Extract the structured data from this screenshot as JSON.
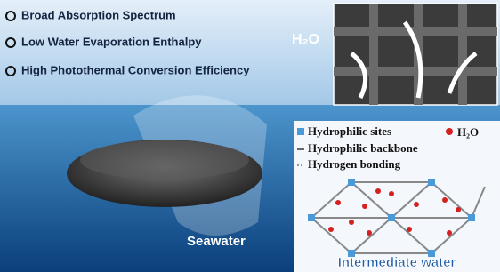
{
  "features": [
    "Broad Absorption Spectrum",
    "Low Water Evaporation Enthalpy",
    "High Photothermal Conversion Efficiency"
  ],
  "inset_label": "H₂O",
  "legend": {
    "sites": "Hydrophilic sites",
    "water": "H₂O",
    "backbone": "Hydrophilic backbone",
    "bonding": "Hydrogen bonding"
  },
  "seawater_label": "Seawater",
  "panel_title": "Intermediate water"
}
